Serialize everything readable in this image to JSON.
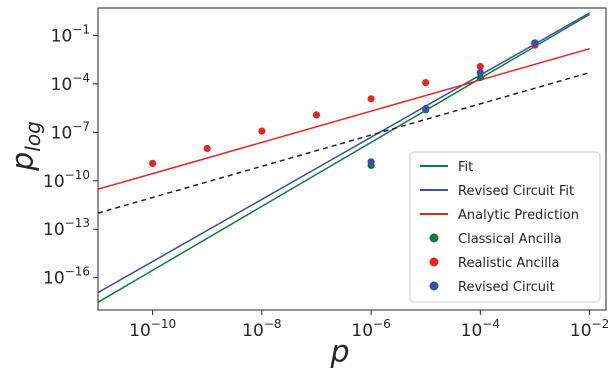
{
  "chart_data": {
    "type": "line",
    "xlabel": "p",
    "ylabel_main": "p",
    "ylabel_sub": "log",
    "x_scale": "log",
    "y_scale": "log",
    "xlim": [
      1e-11,
      0.02
    ],
    "ylim": [
      1e-18,
      5
    ],
    "x_ticks": [
      {
        "value": 1e-10,
        "base": "10",
        "exp": "−10"
      },
      {
        "value": 1e-08,
        "base": "10",
        "exp": "−8"
      },
      {
        "value": 1e-06,
        "base": "10",
        "exp": "−6"
      },
      {
        "value": 0.0001,
        "base": "10",
        "exp": "−4"
      },
      {
        "value": 0.01,
        "base": "10",
        "exp": "−2"
      }
    ],
    "y_ticks": [
      {
        "value": 1e-16,
        "base": "10",
        "exp": "−16"
      },
      {
        "value": 1e-13,
        "base": "10",
        "exp": "−13"
      },
      {
        "value": 1e-10,
        "base": "10",
        "exp": "−10"
      },
      {
        "value": 1e-07,
        "base": "10",
        "exp": "−7"
      },
      {
        "value": 0.0001,
        "base": "10",
        "exp": "−4"
      },
      {
        "value": 0.1,
        "base": "10",
        "exp": "−1"
      }
    ],
    "grid": false,
    "legend_position": "bottom-right",
    "series": [
      {
        "name": "Fit",
        "kind": "line",
        "color": "#117a3c",
        "dash": "",
        "x": [
          1e-11,
          0.01
        ],
        "y": [
          3e-18,
          2.0
        ]
      },
      {
        "name": "Revised Circuit Fit",
        "kind": "line",
        "color": "#3a4fa0",
        "dash": "",
        "x": [
          1e-11,
          0.01
        ],
        "y": [
          1.2e-17,
          2.5
        ]
      },
      {
        "name": "Analytic Prediction",
        "kind": "line",
        "color": "#e32626",
        "dash": "",
        "x": [
          1e-11,
          0.01
        ],
        "y": [
          3e-11,
          0.015
        ]
      },
      {
        "name": "",
        "kind": "line",
        "color": "#222222",
        "dash": "5,4",
        "x": [
          1e-11,
          0.01
        ],
        "y": [
          1e-12,
          0.0005
        ]
      },
      {
        "name": "Classical Ancilla",
        "kind": "points",
        "color": "#117a3c",
        "x": [
          1e-06,
          1e-05,
          0.0001,
          0.001
        ],
        "y": [
          9e-10,
          2.5e-06,
          0.00025,
          0.03
        ]
      },
      {
        "name": "Realistic Ancilla",
        "kind": "points",
        "color": "#e32626",
        "x": [
          1e-10,
          1e-09,
          1e-08,
          1e-07,
          1e-06,
          1e-05,
          0.0001,
          0.001
        ],
        "y": [
          1.2e-09,
          1e-08,
          1.2e-07,
          1.2e-06,
          1.2e-05,
          0.00012,
          0.0012,
          0.025
        ]
      },
      {
        "name": "Revised Circuit",
        "kind": "points",
        "color": "#3a4fa0",
        "x": [
          1e-06,
          1e-05,
          0.0001,
          0.001
        ],
        "y": [
          1.5e-09,
          3e-06,
          0.0005,
          0.035
        ]
      }
    ],
    "legend": [
      {
        "label": "Fit",
        "color": "#117a3c",
        "kind": "line"
      },
      {
        "label": "Revised Circuit Fit",
        "color": "#3a4fa0",
        "kind": "line"
      },
      {
        "label": "Analytic Prediction",
        "color": "#e32626",
        "kind": "line"
      },
      {
        "label": "Classical Ancilla",
        "color": "#117a3c",
        "kind": "points"
      },
      {
        "label": "Realistic Ancilla",
        "color": "#e32626",
        "kind": "points"
      },
      {
        "label": "Revised Circuit",
        "color": "#3a4fa0",
        "kind": "points"
      }
    ]
  }
}
